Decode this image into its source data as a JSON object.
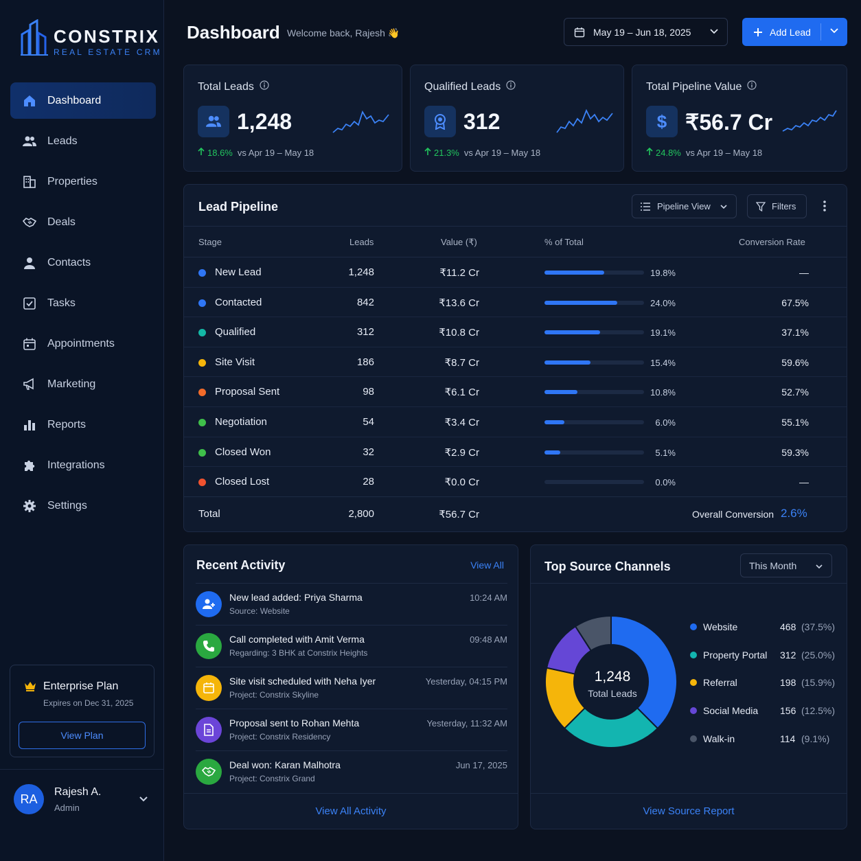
{
  "brand": {
    "name": "CONSTRIX",
    "tagline": "REAL ESTATE CRM"
  },
  "nav": [
    {
      "label": "Dashboard",
      "icon": "home-icon",
      "active": true
    },
    {
      "label": "Leads",
      "icon": "users-icon"
    },
    {
      "label": "Properties",
      "icon": "building-icon"
    },
    {
      "label": "Deals",
      "icon": "handshake-icon"
    },
    {
      "label": "Contacts",
      "icon": "person-icon"
    },
    {
      "label": "Tasks",
      "icon": "checkbox-icon"
    },
    {
      "label": "Appointments",
      "icon": "calendar-icon"
    },
    {
      "label": "Marketing",
      "icon": "megaphone-icon"
    },
    {
      "label": "Reports",
      "icon": "bar-chart-icon"
    },
    {
      "label": "Integrations",
      "icon": "puzzle-icon"
    },
    {
      "label": "Settings",
      "icon": "gear-icon"
    }
  ],
  "plan": {
    "title": "Enterprise Plan",
    "expires": "Expires on Dec 31, 2025",
    "button": "View Plan"
  },
  "user": {
    "initials": "RA",
    "name": "Rajesh A.",
    "role": "Admin"
  },
  "header": {
    "title": "Dashboard",
    "welcome": "Welcome back, Rajesh",
    "wave": "👋",
    "date_range": "May 19 – Jun 18, 2025",
    "add_label": "Add Lead"
  },
  "kpis": [
    {
      "title": "Total Leads",
      "value": "1,248",
      "change": "18.6%",
      "period": "vs Apr 19 – May 18",
      "icon": "users-icon"
    },
    {
      "title": "Qualified Leads",
      "value": "312",
      "change": "21.3%",
      "period": "vs Apr 19 – May 18",
      "icon": "badge-icon"
    },
    {
      "title": "Total Pipeline Value",
      "value": "₹56.7 Cr",
      "change": "24.8%",
      "period": "vs Apr 19 – May 18",
      "icon": "dollar-icon"
    }
  ],
  "pipeline": {
    "title": "Lead Pipeline",
    "view_label": "Pipeline View",
    "filters_label": "Filters",
    "columns": [
      "Stage",
      "Leads",
      "Value (₹)",
      "% of Total",
      "Conversion Rate"
    ],
    "rows": [
      {
        "stage": "New Lead",
        "leads": "1,248",
        "value": "₹11.2 Cr",
        "pct": "19.8%",
        "share": 0.6,
        "conv": "—",
        "color": "#2f76f5"
      },
      {
        "stage": "Contacted",
        "leads": "842",
        "value": "₹13.6 Cr",
        "pct": "24.0%",
        "share": 0.73,
        "conv": "67.5%",
        "color": "#2f76f5"
      },
      {
        "stage": "Qualified",
        "leads": "312",
        "value": "₹10.8 Cr",
        "pct": "19.1%",
        "share": 0.56,
        "conv": "37.1%",
        "color": "#14b8a6"
      },
      {
        "stage": "Site Visit",
        "leads": "186",
        "value": "₹8.7 Cr",
        "pct": "15.4%",
        "share": 0.46,
        "conv": "59.6%",
        "color": "#f5b50a"
      },
      {
        "stage": "Proposal Sent",
        "leads": "98",
        "value": "₹6.1 Cr",
        "pct": "10.8%",
        "share": 0.33,
        "conv": "52.7%",
        "color": "#f26b2a"
      },
      {
        "stage": "Negotiation",
        "leads": "54",
        "value": "₹3.4 Cr",
        "pct": "6.0%",
        "share": 0.2,
        "conv": "55.1%",
        "color": "#3fbf4a"
      },
      {
        "stage": "Closed Won",
        "leads": "32",
        "value": "₹2.9 Cr",
        "pct": "5.1%",
        "share": 0.16,
        "conv": "59.3%",
        "color": "#3fbf4a"
      },
      {
        "stage": "Closed Lost",
        "leads": "28",
        "value": "₹0.0 Cr",
        "pct": "0.0%",
        "share": 0,
        "conv": "—",
        "color": "#f0522f"
      }
    ],
    "total_label": "Total",
    "total_leads": "2,800",
    "total_value": "₹56.7 Cr",
    "overall_label": "Overall Conversion",
    "overall_value": "2.6%"
  },
  "activity": {
    "title": "Recent Activity",
    "view_all": "View All",
    "items": [
      {
        "main": "New lead added: Priya Sharma",
        "sub": "Source: Website",
        "time": "10:24 AM",
        "icon": "user-plus-icon",
        "color": "#1f6bf0"
      },
      {
        "main": "Call completed with Amit Verma",
        "sub": "Regarding: 3 BHK at Constrix Heights",
        "time": "09:48 AM",
        "icon": "phone-icon",
        "color": "#2aa840"
      },
      {
        "main": "Site visit scheduled with Neha Iyer",
        "sub": "Project: Constrix Skyline",
        "time": "Yesterday, 04:15 PM",
        "icon": "calendar-icon",
        "color": "#f5b50a"
      },
      {
        "main": "Proposal sent to Rohan Mehta",
        "sub": "Project: Constrix Residency",
        "time": "Yesterday, 11:32 AM",
        "icon": "document-icon",
        "color": "#6b45d8"
      },
      {
        "main": "Deal won: Karan Malhotra",
        "sub": "Project: Constrix Grand",
        "time": "Jun 17, 2025",
        "icon": "handshake-icon",
        "color": "#2aa840"
      }
    ],
    "footer": "View All Activity"
  },
  "sources": {
    "title": "Top Source Channels",
    "period": "This Month",
    "center_value": "1,248",
    "center_label": "Total Leads",
    "items": [
      {
        "name": "Website",
        "count": "468",
        "pct": "(37.5%)",
        "value": 37.5,
        "color": "#1f6bf0"
      },
      {
        "name": "Property Portal",
        "count": "312",
        "pct": "(25.0%)",
        "value": 25.0,
        "color": "#13b5b0"
      },
      {
        "name": "Referral",
        "count": "198",
        "pct": "(15.9%)",
        "value": 15.9,
        "color": "#f5b50a"
      },
      {
        "name": "Social Media",
        "count": "156",
        "pct": "(12.5%)",
        "value": 12.5,
        "color": "#6547d6"
      },
      {
        "name": "Walk-in",
        "count": "114",
        "pct": "(9.1%)",
        "value": 9.1,
        "color": "#4a5568"
      }
    ],
    "footer": "View Source Report"
  }
}
